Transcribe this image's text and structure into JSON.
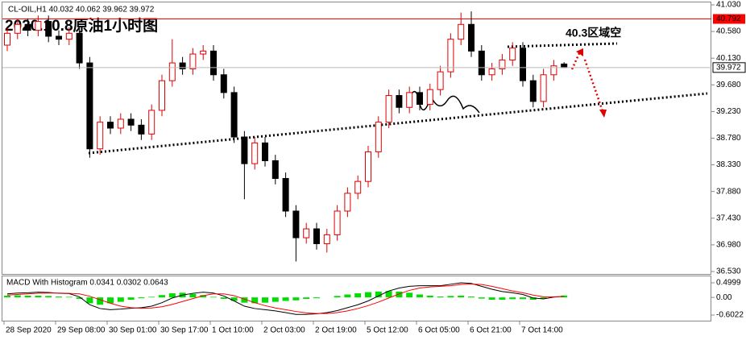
{
  "header": "CL-OIL,H1 40.032 40.062 39.962 39.972",
  "title": "2020.10.8原油1小时图",
  "annotation": "40.3区域空",
  "chart_data": [
    {
      "type": "candlestick",
      "categories": [
        "28 Sep 2020",
        null,
        null,
        null,
        null,
        "29 Sep 08:00",
        null,
        null,
        null,
        null,
        "30 Sep 01:00",
        null,
        null,
        null,
        null,
        "30 Sep 17:00",
        null,
        null,
        null,
        null,
        "1 Oct 10:00",
        null,
        null,
        null,
        null,
        "2 Oct 03:00",
        null,
        null,
        null,
        null,
        "2 Oct 19:00",
        null,
        null,
        null,
        null,
        "5 Oct 12:00",
        null,
        null,
        null,
        null,
        "6 Oct 05:00",
        null,
        null,
        null,
        null,
        "6 Oct 21:00",
        null,
        null,
        null,
        null,
        "7 Oct 14:00",
        null,
        null,
        null,
        null
      ],
      "open": [
        40.35,
        40.55,
        40.7,
        40.6,
        40.75,
        40.5,
        40.45,
        40.55,
        40.05,
        38.6,
        39.05,
        38.95,
        39.1,
        39.0,
        38.85,
        39.25,
        39.75,
        40.05,
        39.95,
        40.2,
        40.25,
        39.85,
        39.55,
        38.8,
        38.35,
        38.7,
        38.4,
        38.1,
        37.55,
        37.1,
        37.25,
        37.0,
        37.15,
        37.55,
        37.85,
        38.05,
        38.55,
        39.05,
        39.5,
        39.3,
        39.55,
        39.35,
        39.6,
        39.9,
        40.45,
        40.7,
        40.25,
        39.85,
        39.95,
        40.1,
        40.3,
        39.75,
        39.4,
        39.85,
        40.032
      ],
      "high": [
        40.65,
        40.8,
        40.8,
        40.85,
        40.85,
        40.6,
        40.65,
        40.65,
        40.15,
        39.15,
        39.15,
        39.2,
        39.2,
        39.1,
        39.35,
        39.85,
        40.45,
        40.15,
        40.3,
        40.35,
        40.35,
        39.95,
        39.65,
        38.9,
        38.8,
        38.8,
        38.5,
        38.2,
        37.65,
        37.35,
        37.35,
        37.25,
        37.65,
        37.95,
        38.15,
        38.65,
        39.15,
        39.6,
        39.6,
        39.65,
        39.65,
        39.7,
        40.0,
        40.55,
        40.9,
        40.92,
        40.35,
        40.05,
        40.2,
        40.4,
        40.4,
        39.85,
        39.95,
        40.1,
        40.062
      ],
      "low": [
        40.25,
        40.45,
        40.5,
        40.5,
        40.4,
        40.35,
        40.35,
        39.95,
        38.45,
        38.5,
        38.85,
        38.85,
        38.9,
        38.75,
        38.75,
        39.15,
        39.65,
        39.85,
        39.85,
        40.1,
        39.75,
        39.45,
        38.7,
        37.75,
        38.25,
        38.3,
        38.0,
        37.45,
        36.7,
        37.0,
        36.9,
        36.85,
        37.05,
        37.45,
        37.75,
        37.95,
        38.45,
        38.95,
        39.2,
        39.2,
        39.25,
        39.25,
        39.5,
        39.8,
        40.35,
        40.15,
        39.75,
        39.75,
        39.85,
        40.0,
        39.65,
        39.3,
        39.3,
        39.75,
        39.962
      ],
      "close": [
        40.55,
        40.7,
        40.6,
        40.75,
        40.5,
        40.45,
        40.55,
        40.05,
        38.6,
        39.05,
        38.95,
        39.1,
        39.0,
        38.85,
        39.25,
        39.75,
        40.05,
        39.95,
        40.2,
        40.25,
        39.85,
        39.55,
        38.8,
        38.35,
        38.7,
        38.4,
        38.1,
        37.55,
        37.1,
        37.25,
        37.0,
        37.15,
        37.55,
        37.85,
        38.05,
        38.55,
        39.05,
        39.5,
        39.3,
        39.55,
        39.35,
        39.6,
        39.9,
        40.45,
        40.7,
        40.25,
        39.85,
        39.95,
        40.1,
        40.3,
        39.75,
        39.4,
        39.85,
        40.0,
        39.972
      ],
      "up_color": "#e00000",
      "down_color": "#000000",
      "hline": 40.792,
      "hline_color": "#ff0000",
      "ylim": [
        36.53,
        41.03
      ],
      "yticks": [
        {
          "value": 41.03,
          "label": "41.030"
        },
        {
          "value": 40.58,
          "label": "40.580"
        },
        {
          "value": 40.13,
          "label": "40.130"
        },
        {
          "value": 39.68,
          "label": "39.680"
        },
        {
          "value": 39.23,
          "label": "39.230"
        },
        {
          "value": 38.78,
          "label": "38.780"
        },
        {
          "value": 38.33,
          "label": "38.330"
        },
        {
          "value": 37.88,
          "label": "37.880"
        },
        {
          "value": 37.43,
          "label": "37.430"
        },
        {
          "value": 36.98,
          "label": "36.980"
        },
        {
          "value": 36.53,
          "label": "36.530"
        }
      ]
    },
    {
      "type": "macd",
      "title": "MACD With Histogram 0.0341 0.0302 0.0643",
      "series": [
        {
          "name": "MACD",
          "color": "#000000",
          "values": [
            0.12,
            0.15,
            0.16,
            0.18,
            0.17,
            0.14,
            0.13,
            0.02,
            -0.25,
            -0.38,
            -0.42,
            -0.4,
            -0.37,
            -0.35,
            -0.3,
            -0.18,
            -0.02,
            0.08,
            0.14,
            0.18,
            0.15,
            0.05,
            -0.12,
            -0.3,
            -0.38,
            -0.42,
            -0.46,
            -0.52,
            -0.58,
            -0.58,
            -0.56,
            -0.52,
            -0.45,
            -0.35,
            -0.25,
            -0.12,
            0.05,
            0.22,
            0.32,
            0.38,
            0.4,
            0.4,
            0.4,
            0.45,
            0.5,
            0.48,
            0.38,
            0.28,
            0.2,
            0.16,
            0.1,
            -0.02,
            -0.05,
            0.01,
            0.0341
          ]
        },
        {
          "name": "Signal",
          "color": "#ff0000",
          "values": [
            0.08,
            0.1,
            0.12,
            0.14,
            0.15,
            0.15,
            0.14,
            0.12,
            0.04,
            -0.08,
            -0.2,
            -0.3,
            -0.35,
            -0.37,
            -0.36,
            -0.32,
            -0.24,
            -0.14,
            -0.04,
            0.06,
            0.12,
            0.12,
            0.06,
            -0.06,
            -0.18,
            -0.28,
            -0.36,
            -0.42,
            -0.48,
            -0.53,
            -0.55,
            -0.55,
            -0.52,
            -0.46,
            -0.38,
            -0.28,
            -0.16,
            -0.02,
            0.12,
            0.24,
            0.32,
            0.36,
            0.38,
            0.4,
            0.44,
            0.46,
            0.44,
            0.38,
            0.3,
            0.22,
            0.16,
            0.08,
            0.02,
            0.02,
            0.0302
          ]
        },
        {
          "name": "Histogram",
          "color": "#00dd00",
          "values": [
            0.06,
            0.07,
            0.06,
            0.06,
            0.05,
            0.03,
            0.02,
            -0.05,
            -0.2,
            -0.25,
            -0.2,
            -0.15,
            -0.08,
            -0.03,
            0.02,
            0.08,
            0.14,
            0.16,
            0.12,
            0.08,
            0.02,
            -0.05,
            -0.12,
            -0.18,
            -0.2,
            -0.18,
            -0.15,
            -0.12,
            -0.1,
            -0.05,
            -0.03,
            0.0,
            0.05,
            0.1,
            0.14,
            0.18,
            0.2,
            0.22,
            0.2,
            0.16,
            0.1,
            0.06,
            0.03,
            0.05,
            0.06,
            0.03,
            -0.04,
            -0.08,
            -0.08,
            -0.06,
            -0.06,
            -0.08,
            -0.05,
            0.0,
            0.0643
          ]
        }
      ],
      "ylim": [
        -0.6022,
        0.4999
      ],
      "yticks": [
        0.4999,
        {
          "value": 0,
          "label": "0.00"
        },
        -0.6022
      ]
    }
  ]
}
